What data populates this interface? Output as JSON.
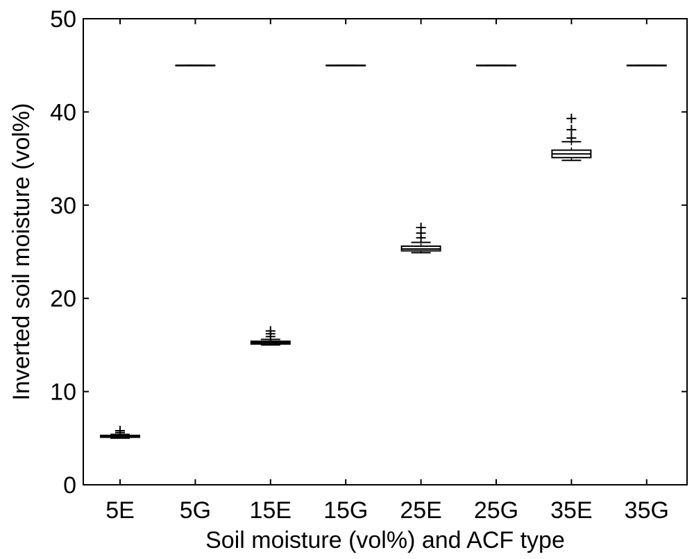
{
  "chart_data": {
    "type": "box",
    "title": "",
    "xlabel": "Soil moisture (vol%) and ACF type",
    "ylabel": "Inverted soil moisture (vol%)",
    "ylim": [
      0,
      50
    ],
    "yticks": [
      0,
      10,
      20,
      30,
      40,
      50
    ],
    "grid": false,
    "legend": "none",
    "categories": [
      "5E",
      "5G",
      "15E",
      "15G",
      "25E",
      "25G",
      "35E",
      "35G"
    ],
    "boxes": [
      {
        "category": "5E",
        "whisker_low": 5.0,
        "q1": 5.1,
        "median": 5.2,
        "q3": 5.3,
        "whisker_high": 5.4,
        "outliers": [
          5.6,
          5.8
        ]
      },
      {
        "category": "5G",
        "whisker_low": 45.0,
        "q1": 45.0,
        "median": 45.0,
        "q3": 45.0,
        "whisker_high": 45.0,
        "outliers": []
      },
      {
        "category": "15E",
        "whisker_low": 15.0,
        "q1": 15.1,
        "median": 15.25,
        "q3": 15.4,
        "whisker_high": 15.6,
        "outliers": [
          15.9,
          16.2,
          16.5
        ]
      },
      {
        "category": "15G",
        "whisker_low": 45.0,
        "q1": 45.0,
        "median": 45.0,
        "q3": 45.0,
        "whisker_high": 45.0,
        "outliers": []
      },
      {
        "category": "25E",
        "whisker_low": 24.9,
        "q1": 25.1,
        "median": 25.3,
        "q3": 25.6,
        "whisker_high": 26.0,
        "outliers": [
          26.5,
          27.0,
          27.6
        ]
      },
      {
        "category": "25G",
        "whisker_low": 45.0,
        "q1": 45.0,
        "median": 45.0,
        "q3": 45.0,
        "whisker_high": 45.0,
        "outliers": []
      },
      {
        "category": "35E",
        "whisker_low": 34.8,
        "q1": 35.1,
        "median": 35.5,
        "q3": 35.9,
        "whisker_high": 36.8,
        "outliers": [
          37.2,
          38.1,
          39.3
        ]
      },
      {
        "category": "35G",
        "whisker_low": 45.0,
        "q1": 45.0,
        "median": 45.0,
        "q3": 45.0,
        "whisker_high": 45.0,
        "outliers": []
      }
    ],
    "colors": {
      "line": "#000000",
      "background": "#ffffff"
    }
  }
}
